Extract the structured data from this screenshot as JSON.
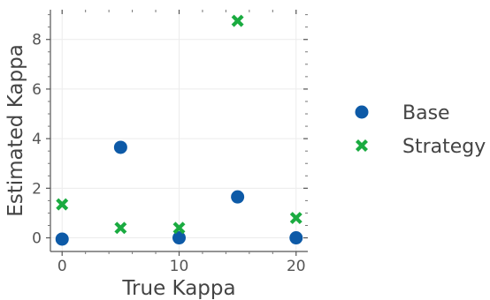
{
  "chart_data": {
    "type": "scatter",
    "xlabel": "True Kappa",
    "ylabel": "Estimated Kappa",
    "xlim": [
      -1,
      21
    ],
    "ylim": [
      -0.55,
      9.2
    ],
    "xticks": [
      0,
      10,
      20
    ],
    "yticks": [
      0,
      2,
      4,
      6,
      8
    ],
    "grid": true,
    "legend_position": "right",
    "series": [
      {
        "name": "Base",
        "marker": "circle",
        "color": "#0d5aa7",
        "x": [
          0,
          5,
          10,
          15,
          20
        ],
        "y": [
          -0.05,
          3.65,
          0.0,
          1.65,
          0.0
        ]
      },
      {
        "name": "Strategy",
        "marker": "x",
        "color": "#1aab40",
        "x": [
          0,
          5,
          10,
          15,
          20
        ],
        "y": [
          1.35,
          0.4,
          0.4,
          8.75,
          0.8
        ]
      }
    ]
  }
}
